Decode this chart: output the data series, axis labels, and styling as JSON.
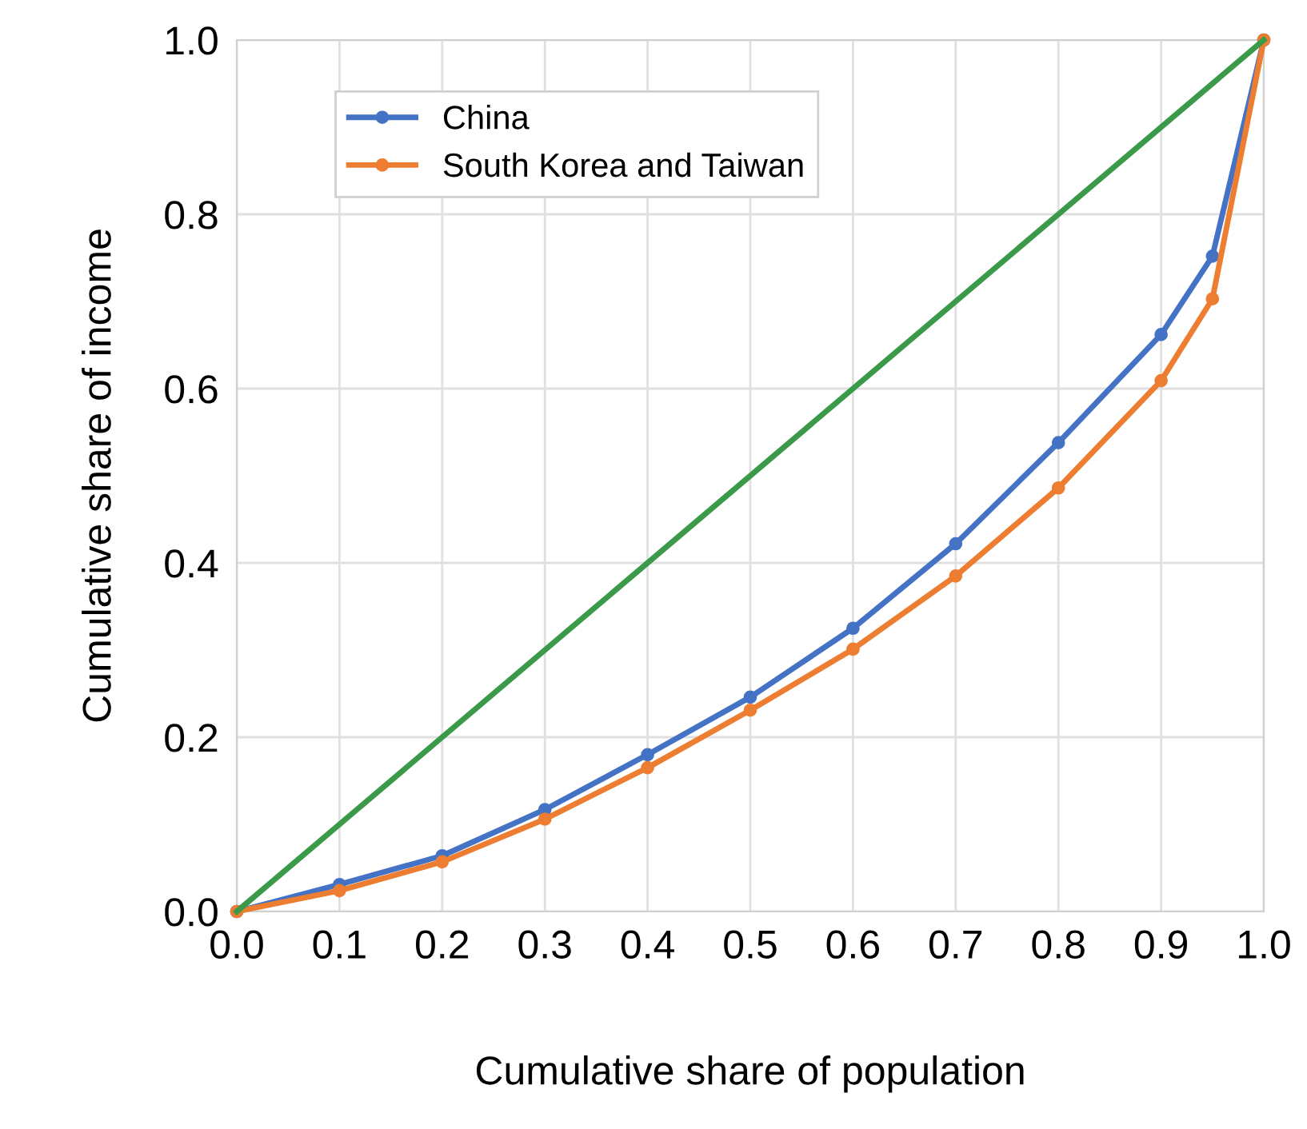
{
  "chart_data": {
    "type": "line",
    "xlabel": "Cumulative share of population",
    "ylabel": "Cumulative share of income",
    "xlim": [
      0,
      1
    ],
    "ylim": [
      0,
      1
    ],
    "xticks": [
      {
        "value": 0,
        "label": "0.0"
      },
      0.1,
      0.2,
      0.3,
      0.4,
      0.5,
      0.6,
      0.7,
      0.8,
      0.9,
      {
        "value": 1,
        "label": "1.0"
      }
    ],
    "yticks": [
      {
        "value": 0,
        "label": "0.0"
      },
      0.2,
      0.4,
      0.6,
      0.8,
      {
        "value": 1,
        "label": "1.0"
      }
    ],
    "grid": true,
    "legend": "top left",
    "series": [
      {
        "name": "China",
        "color": "#4472c4",
        "marker": "circle",
        "x": [
          0,
          0.1,
          0.2,
          0.3,
          0.4,
          0.5,
          0.6,
          0.7,
          0.8,
          0.9,
          0.95,
          1.0
        ],
        "values": [
          0,
          0.031,
          0.064,
          0.117,
          0.18,
          0.246,
          0.325,
          0.422,
          0.538,
          0.662,
          0.752,
          1.0
        ]
      },
      {
        "name": "South Korea and Taiwan",
        "color": "#ed7d31",
        "marker": "circle",
        "x": [
          0,
          0.1,
          0.2,
          0.3,
          0.4,
          0.5,
          0.6,
          0.7,
          0.8,
          0.9,
          0.95,
          1.0
        ],
        "values": [
          0,
          0.024,
          0.057,
          0.106,
          0.165,
          0.231,
          0.301,
          0.385,
          0.486,
          0.609,
          0.703,
          1.0
        ]
      },
      {
        "color": "#3a9a4a",
        "marker": "none",
        "x": [
          0,
          1
        ],
        "values": [
          0,
          1
        ]
      }
    ]
  }
}
